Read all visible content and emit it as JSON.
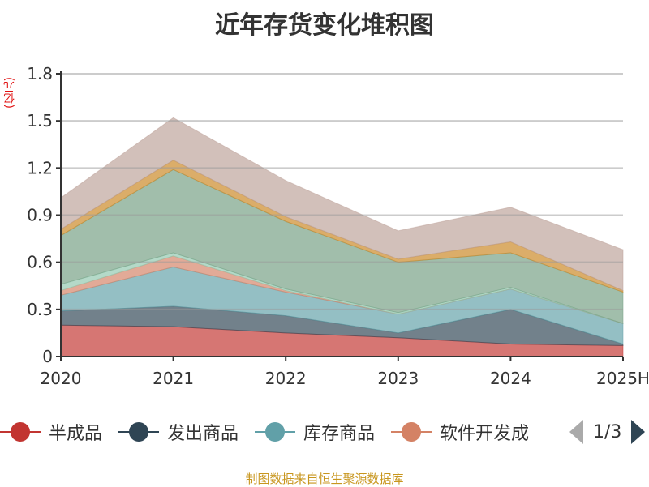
{
  "chart_data": {
    "type": "area",
    "stacked": true,
    "title": "近年存货变化堆积图",
    "ylabel": "(亿元)",
    "ylim": [
      0,
      1.8
    ],
    "yticks": [
      "0",
      "0.3",
      "0.6",
      "0.9",
      "1.2",
      "1.5",
      "1.8"
    ],
    "grid": true,
    "categories": [
      "2020",
      "2021",
      "2022",
      "2023",
      "2024",
      "2025H"
    ],
    "legend_position": "bottom",
    "legend_page": "1/3",
    "series": [
      {
        "name": "半成品",
        "color": "#c23531",
        "values": [
          0.2,
          0.19,
          0.15,
          0.12,
          0.08,
          0.07
        ]
      },
      {
        "name": "发出商品",
        "color": "#2f4554",
        "values": [
          0.09,
          0.13,
          0.11,
          0.03,
          0.22,
          0.01
        ]
      },
      {
        "name": "库存商品",
        "color": "#61a0a8",
        "values": [
          0.1,
          0.25,
          0.15,
          0.12,
          0.13,
          0.13
        ]
      },
      {
        "name": "软件开发成",
        "color": "#d48265",
        "values": [
          0.03,
          0.07,
          0.01,
          0.0,
          0.0,
          0.0
        ]
      },
      {
        "color": "#91c7ae",
        "values": [
          0.04,
          0.02,
          0.01,
          0.01,
          0.01,
          0.0
        ]
      },
      {
        "color": "#749f83",
        "values": [
          0.31,
          0.53,
          0.43,
          0.32,
          0.22,
          0.2
        ]
      },
      {
        "color": "#ca8622",
        "values": [
          0.04,
          0.06,
          0.03,
          0.02,
          0.07,
          0.01
        ]
      },
      {
        "color": "#bda29a",
        "values": [
          0.2,
          0.27,
          0.23,
          0.18,
          0.22,
          0.26
        ]
      }
    ]
  },
  "source": "制图数据来自恒生聚源数据库"
}
